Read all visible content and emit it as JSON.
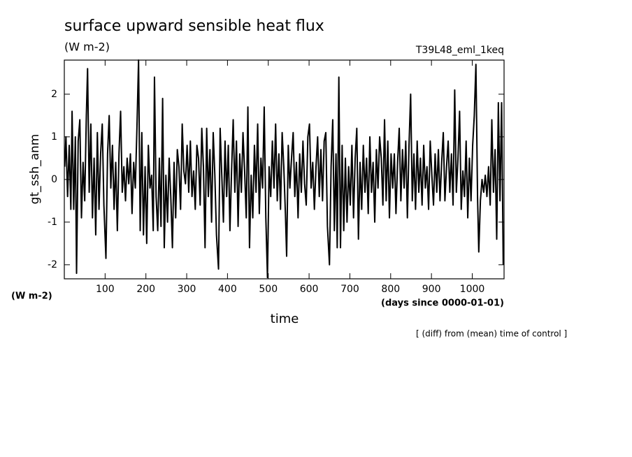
{
  "chart_data": {
    "type": "line",
    "title": "surface upward sensible heat flux",
    "units": "(W m-2)",
    "run_label": "T39L48_eml_1keq",
    "ylabel": "gt_ssh_anm",
    "y_units": "(W m-2)",
    "xlabel": "time",
    "x_units": "(days since 0000-01-01)",
    "footnote": "[ (diff) from (mean) time of control ]",
    "xlim": [
      0,
      1078
    ],
    "xticks": [
      100,
      200,
      300,
      400,
      500,
      600,
      700,
      800,
      900,
      1000
    ],
    "ylim": [
      -2.33,
      2.8
    ],
    "yticks": [
      -2,
      -1,
      0,
      1,
      2
    ],
    "x": [
      1,
      4,
      8,
      12,
      16,
      19,
      23,
      27,
      30,
      34,
      38,
      42,
      46,
      50,
      54,
      57,
      61,
      65,
      69,
      73,
      77,
      81,
      85,
      89,
      93,
      97,
      102,
      106,
      110,
      114,
      118,
      122,
      126,
      130,
      134,
      138,
      142,
      146,
      150,
      154,
      158,
      162,
      166,
      170,
      174,
      178,
      182,
      186,
      190,
      194,
      198,
      202,
      206,
      210,
      214,
      218,
      221,
      225,
      229,
      233,
      237,
      241,
      245,
      249,
      253,
      257,
      261,
      265,
      269,
      273,
      277,
      281,
      285,
      289,
      293,
      297,
      301,
      305,
      309,
      313,
      317,
      321,
      325,
      329,
      333,
      337,
      341,
      345,
      349,
      353,
      357,
      361,
      365,
      369,
      373,
      378,
      382,
      386,
      390,
      394,
      398,
      402,
      406,
      410,
      414,
      418,
      422,
      426,
      430,
      434,
      438,
      442,
      446,
      450,
      454,
      458,
      462,
      466,
      470,
      474,
      478,
      482,
      486,
      490,
      494,
      498,
      502,
      506,
      510,
      514,
      518,
      522,
      526,
      530,
      534,
      538,
      542,
      545,
      549,
      553,
      557,
      561,
      565,
      569,
      573,
      577,
      581,
      585,
      589,
      593,
      597,
      601,
      605,
      609,
      613,
      617,
      621,
      625,
      629,
      633,
      637,
      641,
      645,
      650,
      654,
      658,
      662,
      666,
      669,
      673,
      677,
      681,
      685,
      689,
      693,
      697,
      701,
      705,
      709,
      713,
      717,
      721,
      725,
      729,
      733,
      737,
      741,
      745,
      749,
      753,
      757,
      761,
      765,
      769,
      773,
      777,
      781,
      785,
      789,
      793,
      797,
      801,
      805,
      809,
      813,
      817,
      821,
      825,
      829,
      833,
      837,
      841,
      845,
      849,
      853,
      857,
      861,
      865,
      869,
      873,
      877,
      881,
      885,
      889,
      893,
      897,
      901,
      905,
      909,
      913,
      917,
      921,
      925,
      929,
      933,
      937,
      941,
      945,
      949,
      953,
      957,
      961,
      965,
      969,
      973,
      977,
      981,
      985,
      989,
      993,
      997,
      1001,
      1005,
      1009,
      1013,
      1016,
      1020,
      1024,
      1028,
      1032,
      1036,
      1040,
      1044,
      1048,
      1052,
      1056,
      1060,
      1064,
      1068,
      1072,
      1076
    ],
    "series": [
      {
        "color": "#000000",
        "values": [
          0.3,
          1.0,
          -0.4,
          0.8,
          -0.7,
          1.6,
          -0.7,
          1.0,
          -2.2,
          0.9,
          1.4,
          -0.9,
          0.4,
          -0.5,
          1.5,
          2.6,
          -0.3,
          1.3,
          -0.9,
          0.5,
          -1.3,
          1.1,
          -0.7,
          0.6,
          1.3,
          -0.6,
          -1.85,
          0.6,
          1.5,
          -0.2,
          0.8,
          -0.7,
          0.4,
          -1.2,
          0.6,
          1.6,
          -0.3,
          0.3,
          -0.5,
          0.5,
          -0.1,
          0.6,
          -0.8,
          0.4,
          -0.2,
          1.2,
          2.8,
          -1.2,
          1.1,
          -1.3,
          0.3,
          -1.5,
          0.8,
          -0.2,
          0.1,
          -1.2,
          2.4,
          -0.4,
          -1.2,
          0.5,
          -1.1,
          1.9,
          -1.6,
          0.1,
          -1.0,
          0.5,
          -0.4,
          -1.6,
          0.4,
          -0.9,
          0.7,
          0.3,
          -0.7,
          1.3,
          0.2,
          -0.1,
          0.8,
          -0.3,
          0.9,
          -0.4,
          0.2,
          -0.7,
          0.8,
          0.5,
          -0.6,
          1.2,
          0.3,
          -1.6,
          1.2,
          -0.4,
          0.7,
          -1.0,
          1.1,
          0.1,
          -1.3,
          -2.1,
          1.2,
          0.1,
          -1.0,
          0.9,
          -0.4,
          0.8,
          -1.2,
          0.2,
          1.4,
          -0.3,
          0.9,
          -1.1,
          0.6,
          -0.3,
          1.1,
          0.2,
          -0.9,
          1.7,
          -1.6,
          0.1,
          -0.9,
          0.8,
          -0.3,
          1.3,
          -0.8,
          0.5,
          -0.2,
          1.7,
          -0.9,
          -2.3,
          0.3,
          -0.4,
          0.9,
          -0.2,
          1.3,
          -0.5,
          0.6,
          -0.7,
          1.1,
          0.3,
          -0.8,
          -1.8,
          0.8,
          -0.2,
          0.5,
          1.1,
          -0.4,
          0.4,
          -0.9,
          0.6,
          -0.3,
          0.9,
          -0.1,
          -0.6,
          1.0,
          1.3,
          -0.2,
          0.4,
          -0.7,
          0.3,
          1.0,
          -0.4,
          0.7,
          -0.5,
          0.9,
          1.1,
          -1.1,
          -2.0,
          0.3,
          1.4,
          -1.2,
          0.6,
          -1.6,
          2.4,
          -1.6,
          0.8,
          -1.2,
          0.5,
          -1.0,
          0.3,
          -0.6,
          0.8,
          -0.9,
          0.5,
          1.2,
          -1.4,
          0.4,
          -0.7,
          0.8,
          -0.3,
          0.5,
          -0.8,
          1.0,
          -0.3,
          0.4,
          -1.0,
          0.7,
          -0.2,
          1.0,
          0.5,
          -0.6,
          1.4,
          -0.5,
          0.9,
          -0.9,
          0.6,
          -0.2,
          0.6,
          -0.8,
          0.4,
          1.2,
          -0.5,
          0.7,
          -0.2,
          0.9,
          -0.9,
          0.8,
          2.0,
          -0.5,
          0.6,
          -0.7,
          0.9,
          -0.3,
          0.5,
          -0.6,
          0.8,
          -0.2,
          0.3,
          -0.7,
          0.9,
          0.1,
          -0.6,
          0.6,
          -0.3,
          0.7,
          -0.5,
          0.4,
          1.1,
          -0.5,
          0.3,
          0.9,
          -0.3,
          0.6,
          -0.6,
          2.1,
          -0.3,
          0.5,
          1.6,
          -0.7,
          0.2,
          -0.4,
          0.9,
          -0.9,
          0.5,
          -0.5,
          0.8,
          1.5,
          2.7,
          -0.4,
          -1.7,
          -0.5,
          0.0,
          -0.3,
          0.1,
          -0.4,
          0.3,
          -0.6,
          1.4,
          -0.3,
          0.7,
          -1.4,
          1.8,
          -0.5,
          1.8,
          -2.0
        ]
      }
    ]
  }
}
